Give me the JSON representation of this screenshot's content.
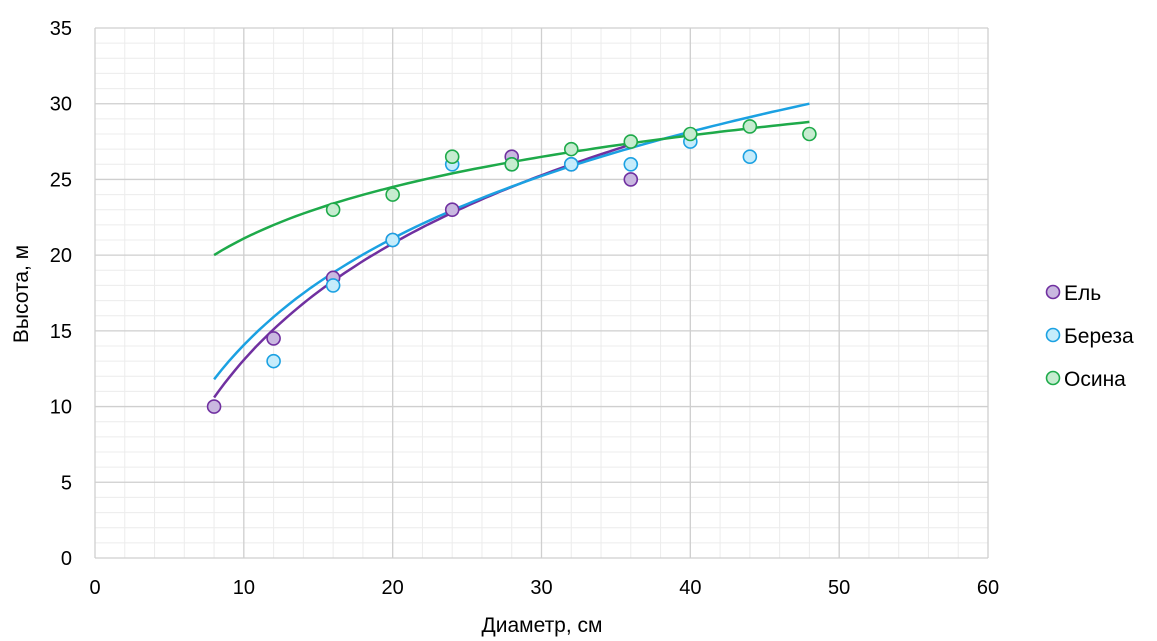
{
  "chart_data": {
    "type": "scatter",
    "title": "",
    "xlabel": "Диаметр, см",
    "ylabel": "Высота, м",
    "xlim": [
      0,
      60
    ],
    "ylim": [
      0,
      35
    ],
    "x_ticks": [
      0,
      10,
      20,
      30,
      40,
      50,
      60
    ],
    "y_ticks": [
      0,
      5,
      10,
      15,
      20,
      25,
      30,
      35
    ],
    "grid": "major and minor",
    "legend_position": "right",
    "series": [
      {
        "name": "Ель",
        "color": "#7030a0",
        "fill": "#c9b8e0",
        "points": [
          [
            8,
            10
          ],
          [
            12,
            14.5
          ],
          [
            16,
            18.5
          ],
          [
            20,
            21
          ],
          [
            24,
            23
          ],
          [
            28,
            26.5
          ],
          [
            32,
            26
          ],
          [
            36,
            25
          ]
        ],
        "trend": {
          "type": "logarithmic",
          "x_range": [
            8,
            36
          ],
          "endpoints": [
            [
              8,
              10.6
            ],
            [
              36,
              27.3
            ]
          ]
        }
      },
      {
        "name": "Береза",
        "color": "#1ba1e2",
        "fill": "#c5ecfb",
        "points": [
          [
            12,
            13
          ],
          [
            16,
            18
          ],
          [
            20,
            21
          ],
          [
            24,
            26
          ],
          [
            28,
            26
          ],
          [
            32,
            26
          ],
          [
            36,
            26
          ],
          [
            40,
            27.5
          ],
          [
            44,
            26.5
          ]
        ],
        "trend": {
          "type": "logarithmic",
          "x_range": [
            8,
            48
          ],
          "endpoints": [
            [
              8,
              11.8
            ],
            [
              48,
              30
            ]
          ]
        }
      },
      {
        "name": "Осина",
        "color": "#1eaa4a",
        "fill": "#c6ecd0",
        "points": [
          [
            16,
            23
          ],
          [
            20,
            24
          ],
          [
            24,
            26.5
          ],
          [
            28,
            26
          ],
          [
            32,
            27
          ],
          [
            36,
            27.5
          ],
          [
            40,
            28
          ],
          [
            44,
            28.5
          ],
          [
            48,
            28
          ]
        ],
        "trend": {
          "type": "logarithmic",
          "x_range": [
            8,
            48
          ],
          "endpoints": [
            [
              8,
              20
            ],
            [
              48,
              28.8
            ]
          ]
        }
      }
    ]
  }
}
